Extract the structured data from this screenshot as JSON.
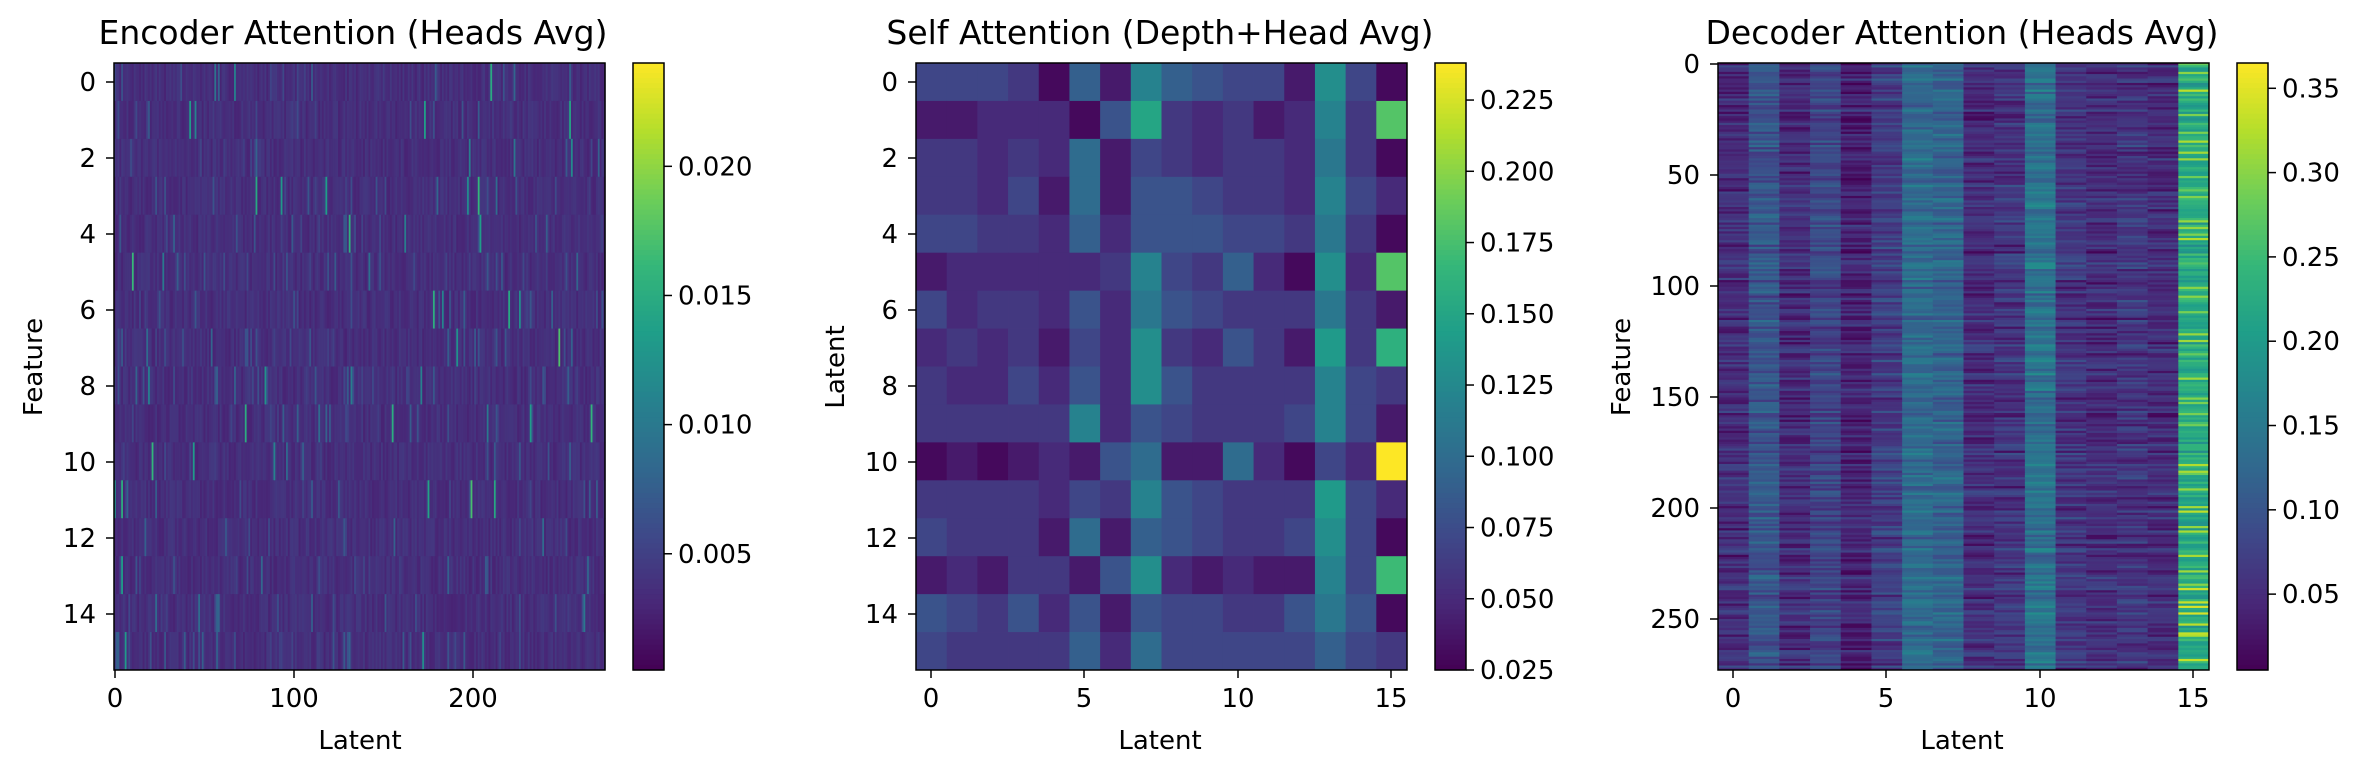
{
  "chart_data": [
    {
      "type": "heatmap",
      "title": "Encoder Attention (Heads Avg)",
      "xlabel": "Latent",
      "ylabel": "Feature",
      "rows": 16,
      "cols": 274,
      "xticks": [
        "0",
        "100",
        "200"
      ],
      "yticks": [
        "0",
        "2",
        "4",
        "6",
        "8",
        "10",
        "12",
        "14"
      ],
      "colorbar": {
        "min": 0.0005,
        "max": 0.024,
        "ticks": [
          "0.005",
          "0.010",
          "0.015",
          "0.020"
        ]
      }
    },
    {
      "type": "heatmap",
      "title": "Self Attention (Depth+Head Avg)",
      "xlabel": "Latent",
      "ylabel": "Latent",
      "rows": 16,
      "cols": 16,
      "xticks": [
        "0",
        "5",
        "10",
        "15"
      ],
      "yticks": [
        "0",
        "2",
        "4",
        "6",
        "8",
        "10",
        "12",
        "14"
      ],
      "colorbar": {
        "min": 0.025,
        "max": 0.238,
        "ticks": [
          "0.025",
          "0.050",
          "0.075",
          "0.100",
          "0.125",
          "0.150",
          "0.175",
          "0.200",
          "0.225"
        ]
      },
      "values": [
        [
          0.07,
          0.07,
          0.07,
          0.06,
          0.03,
          0.09,
          0.04,
          0.12,
          0.09,
          0.08,
          0.07,
          0.07,
          0.04,
          0.13,
          0.07,
          0.03
        ],
        [
          0.04,
          0.04,
          0.05,
          0.05,
          0.05,
          0.03,
          0.08,
          0.15,
          0.06,
          0.05,
          0.06,
          0.04,
          0.05,
          0.12,
          0.06,
          0.18
        ],
        [
          0.06,
          0.06,
          0.05,
          0.06,
          0.05,
          0.1,
          0.04,
          0.07,
          0.06,
          0.05,
          0.06,
          0.06,
          0.05,
          0.11,
          0.06,
          0.03
        ],
        [
          0.06,
          0.06,
          0.05,
          0.07,
          0.04,
          0.1,
          0.04,
          0.08,
          0.08,
          0.07,
          0.06,
          0.06,
          0.05,
          0.12,
          0.07,
          0.05
        ],
        [
          0.07,
          0.07,
          0.06,
          0.06,
          0.05,
          0.09,
          0.05,
          0.08,
          0.08,
          0.08,
          0.07,
          0.07,
          0.06,
          0.11,
          0.06,
          0.03
        ],
        [
          0.04,
          0.05,
          0.05,
          0.05,
          0.05,
          0.05,
          0.06,
          0.12,
          0.07,
          0.06,
          0.09,
          0.05,
          0.03,
          0.13,
          0.05,
          0.18
        ],
        [
          0.07,
          0.05,
          0.06,
          0.06,
          0.05,
          0.08,
          0.05,
          0.11,
          0.08,
          0.07,
          0.06,
          0.06,
          0.06,
          0.11,
          0.06,
          0.04
        ],
        [
          0.05,
          0.06,
          0.05,
          0.06,
          0.04,
          0.07,
          0.05,
          0.13,
          0.06,
          0.05,
          0.08,
          0.06,
          0.04,
          0.14,
          0.06,
          0.16
        ],
        [
          0.06,
          0.05,
          0.05,
          0.07,
          0.05,
          0.08,
          0.05,
          0.13,
          0.08,
          0.06,
          0.06,
          0.06,
          0.06,
          0.12,
          0.07,
          0.06
        ],
        [
          0.06,
          0.06,
          0.06,
          0.06,
          0.06,
          0.12,
          0.05,
          0.08,
          0.07,
          0.06,
          0.06,
          0.06,
          0.07,
          0.12,
          0.07,
          0.04
        ],
        [
          0.03,
          0.04,
          0.03,
          0.04,
          0.05,
          0.04,
          0.08,
          0.1,
          0.04,
          0.04,
          0.1,
          0.05,
          0.03,
          0.07,
          0.05,
          0.24
        ],
        [
          0.06,
          0.06,
          0.06,
          0.06,
          0.05,
          0.07,
          0.06,
          0.12,
          0.08,
          0.07,
          0.06,
          0.06,
          0.06,
          0.14,
          0.07,
          0.05
        ],
        [
          0.07,
          0.06,
          0.06,
          0.06,
          0.04,
          0.1,
          0.04,
          0.09,
          0.08,
          0.07,
          0.06,
          0.06,
          0.07,
          0.13,
          0.07,
          0.03
        ],
        [
          0.04,
          0.05,
          0.04,
          0.06,
          0.06,
          0.04,
          0.08,
          0.13,
          0.05,
          0.04,
          0.05,
          0.04,
          0.04,
          0.12,
          0.07,
          0.17
        ],
        [
          0.08,
          0.07,
          0.06,
          0.08,
          0.05,
          0.08,
          0.04,
          0.08,
          0.07,
          0.07,
          0.06,
          0.06,
          0.08,
          0.11,
          0.08,
          0.03
        ],
        [
          0.07,
          0.06,
          0.06,
          0.06,
          0.06,
          0.09,
          0.05,
          0.1,
          0.07,
          0.07,
          0.07,
          0.07,
          0.07,
          0.09,
          0.07,
          0.06
        ]
      ]
    },
    {
      "type": "heatmap",
      "title": "Decoder Attention (Heads Avg)",
      "xlabel": "Latent",
      "ylabel": "Feature",
      "rows": 274,
      "cols": 16,
      "xticks": [
        "0",
        "5",
        "10",
        "15"
      ],
      "yticks": [
        "0",
        "50",
        "100",
        "150",
        "200",
        "250"
      ],
      "colorbar": {
        "min": 0.005,
        "max": 0.365,
        "ticks": [
          "0.05",
          "0.10",
          "0.15",
          "0.20",
          "0.25",
          "0.30",
          "0.35"
        ]
      },
      "column_means": [
        0.05,
        0.1,
        0.05,
        0.08,
        0.04,
        0.07,
        0.13,
        0.12,
        0.05,
        0.06,
        0.14,
        0.06,
        0.05,
        0.06,
        0.05,
        0.22
      ]
    }
  ]
}
